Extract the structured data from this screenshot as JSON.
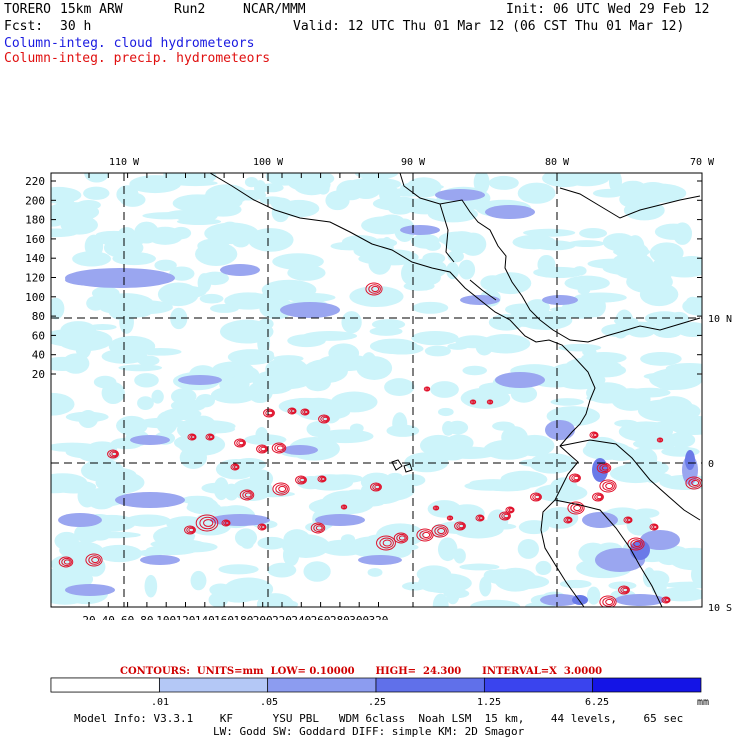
{
  "header": {
    "model": "TORERO",
    "res": "15km ARW",
    "run": "Run2",
    "org": "NCAR/MMM",
    "init": "Init: 06 UTC Wed 29 Feb 12",
    "fcst_label": "Fcst:",
    "fcst_val": "30 h",
    "valid": "Valid: 12 UTC Thu 01 Mar 12 (06 CST Thu 01 Mar 12)",
    "field1": "Column-integ. cloud hydrometeors",
    "field2": "Column-integ. precip. hydrometeors"
  },
  "map": {
    "top_lon_labels": [
      "110 W",
      "100 W",
      "90 W",
      "80 W",
      "70 W"
    ],
    "right_lat_labels": [
      "10 N",
      "0",
      "10 S"
    ],
    "y_ticks": [
      "220",
      "200",
      "180",
      "160",
      "140",
      "120",
      "100",
      "80",
      "60",
      "40",
      "20"
    ],
    "x_ticks": [
      "20",
      "40",
      "60",
      "80",
      "100",
      "120",
      "140",
      "160",
      "180",
      "200",
      "220",
      "240",
      "260",
      "280",
      "300",
      "320"
    ],
    "colors": {
      "cloud_light": "#cdf4fa",
      "cloud_mid": "#9aa6f0",
      "cloud_dark": "#6a7ae8",
      "precip": "#e0102a",
      "coast": "#000000"
    }
  },
  "footer": {
    "contours": "CONTOURS:  UNITS=mm  LOW= 0.10000      HIGH=  24.300      INTERVAL=X  3.0000",
    "colorbar_labels": [
      ".01",
      ".05",
      ".25",
      "1.25",
      "6.25",
      "mm"
    ],
    "colorbar_colors": [
      "#ffffff",
      "#cdf4fa",
      "#b4c8f6",
      "#8c9cf0",
      "#6070ea",
      "#3a44ee",
      "#1414e6"
    ],
    "model_info": "Model Info: V3.3.1    KF      YSU PBL   WDM 6class  Noah LSM  15 km,    44 levels,    65 sec",
    "model_info2": "LW: Godd SW: Goddard DIFF: simple KM: 2D Smagor"
  }
}
